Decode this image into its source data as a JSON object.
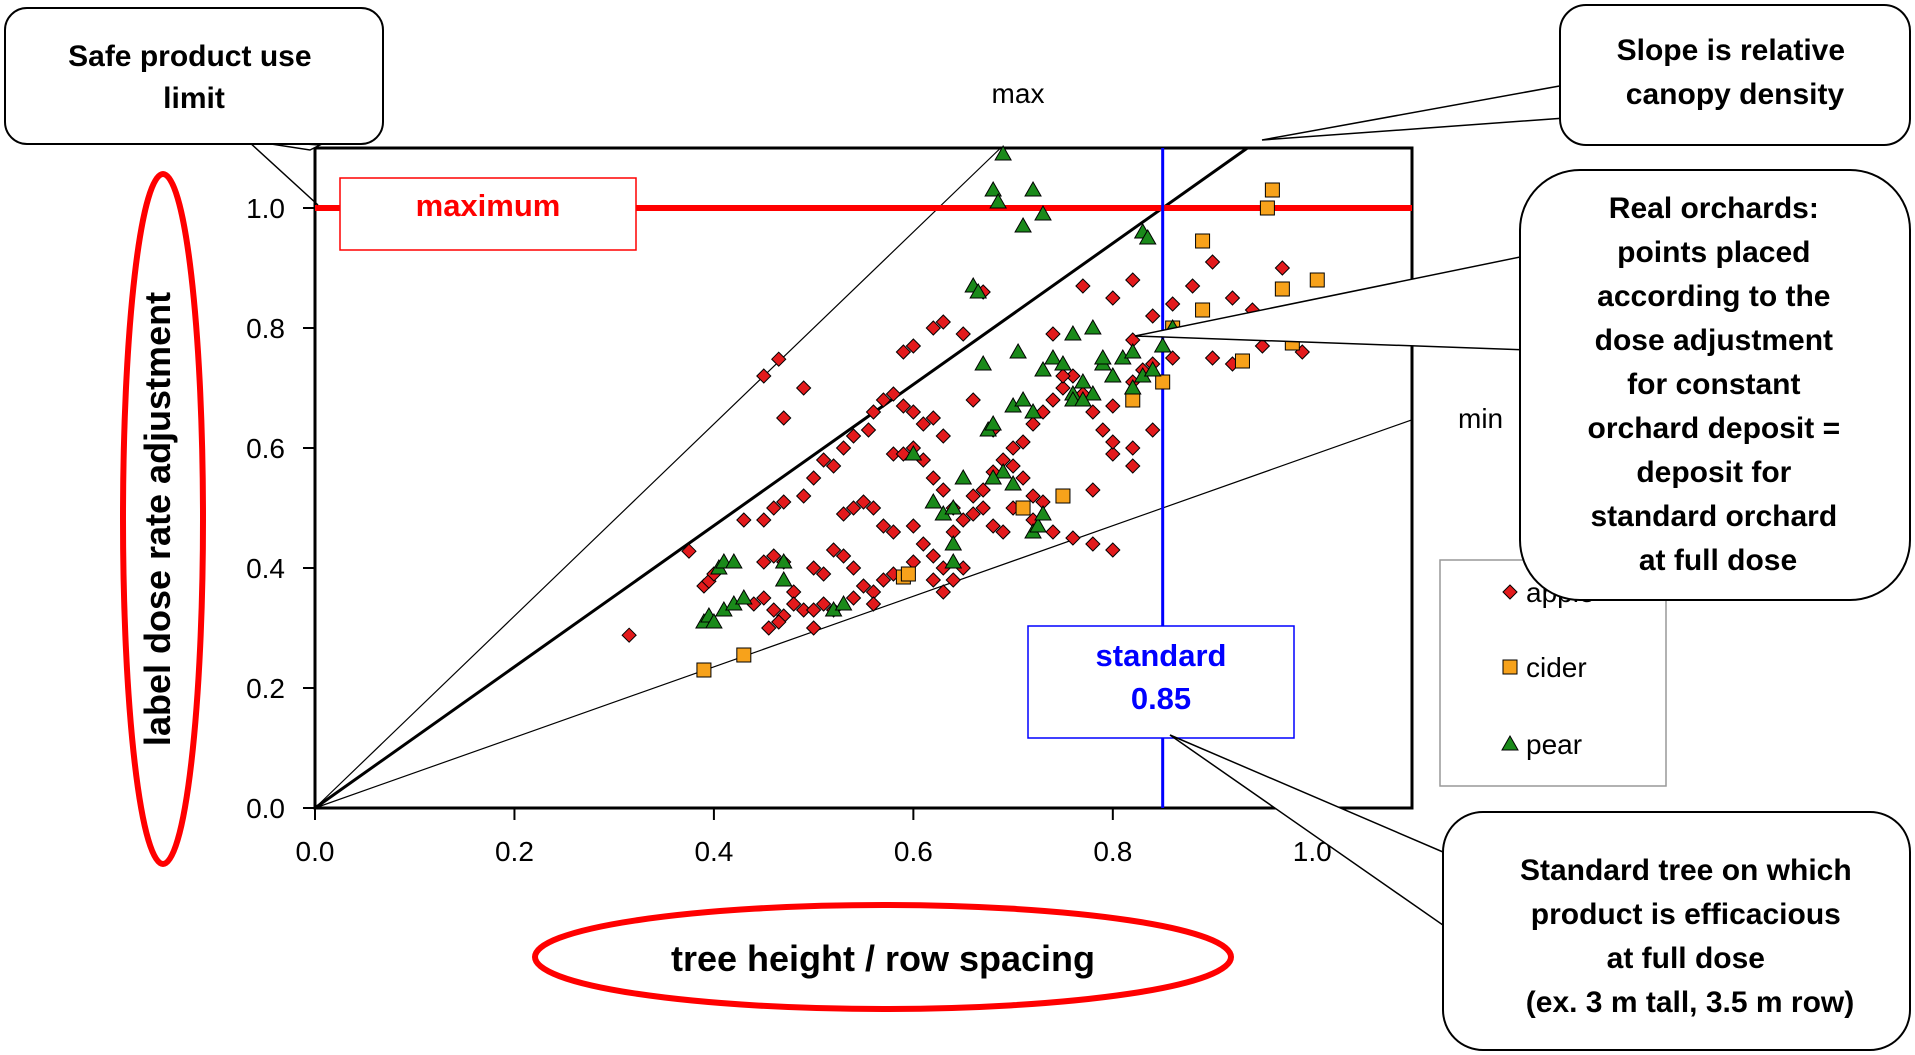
{
  "chart_data": {
    "type": "scatter",
    "xlabel": "tree height / row spacing",
    "ylabel": "label dose rate adjustment",
    "xlim": [
      0,
      1.1
    ],
    "ylim": [
      0,
      1.1
    ],
    "x_ticks": [
      "0.0",
      "0.2",
      "0.4",
      "0.6",
      "0.8",
      "1.0"
    ],
    "y_ticks": [
      "0.0",
      "0.2",
      "0.4",
      "0.6",
      "0.8",
      "1.0"
    ],
    "grid": false,
    "legend_position": "right",
    "reference_lines": {
      "max_label": "max",
      "min_label": "min",
      "maximum": {
        "value": 1.0,
        "label": "maximum",
        "color": "#ff0000"
      },
      "standard": {
        "value": 0.85,
        "label": "standard",
        "value_label": "0.85",
        "color": "#0000ff"
      },
      "slopes": {
        "max": 1.6,
        "standard": 1.1765,
        "min": 0.5882
      }
    },
    "series": [
      {
        "name": "apple",
        "marker": "diamond",
        "color": "#e31a1c",
        "points": [
          [
            0.315,
            0.288
          ],
          [
            0.375,
            0.428
          ],
          [
            0.39,
            0.37
          ],
          [
            0.395,
            0.378
          ],
          [
            0.4,
            0.39
          ],
          [
            0.43,
            0.48
          ],
          [
            0.45,
            0.72
          ],
          [
            0.465,
            0.748
          ],
          [
            0.47,
            0.65
          ],
          [
            0.49,
            0.7
          ],
          [
            0.44,
            0.34
          ],
          [
            0.45,
            0.35
          ],
          [
            0.46,
            0.33
          ],
          [
            0.47,
            0.32
          ],
          [
            0.48,
            0.36
          ],
          [
            0.49,
            0.33
          ],
          [
            0.5,
            0.33
          ],
          [
            0.51,
            0.34
          ],
          [
            0.45,
            0.41
          ],
          [
            0.46,
            0.42
          ],
          [
            0.47,
            0.41
          ],
          [
            0.455,
            0.3
          ],
          [
            0.465,
            0.31
          ],
          [
            0.48,
            0.34
          ],
          [
            0.45,
            0.48
          ],
          [
            0.46,
            0.5
          ],
          [
            0.47,
            0.51
          ],
          [
            0.49,
            0.52
          ],
          [
            0.5,
            0.55
          ],
          [
            0.51,
            0.58
          ],
          [
            0.52,
            0.57
          ],
          [
            0.53,
            0.6
          ],
          [
            0.54,
            0.62
          ],
          [
            0.555,
            0.63
          ],
          [
            0.5,
            0.4
          ],
          [
            0.51,
            0.39
          ],
          [
            0.52,
            0.43
          ],
          [
            0.53,
            0.42
          ],
          [
            0.54,
            0.4
          ],
          [
            0.55,
            0.37
          ],
          [
            0.56,
            0.36
          ],
          [
            0.57,
            0.38
          ],
          [
            0.53,
            0.49
          ],
          [
            0.54,
            0.5
          ],
          [
            0.55,
            0.51
          ],
          [
            0.56,
            0.5
          ],
          [
            0.57,
            0.47
          ],
          [
            0.58,
            0.46
          ],
          [
            0.5,
            0.3
          ],
          [
            0.52,
            0.33
          ],
          [
            0.54,
            0.35
          ],
          [
            0.56,
            0.34
          ],
          [
            0.58,
            0.39
          ],
          [
            0.6,
            0.41
          ],
          [
            0.56,
            0.66
          ],
          [
            0.57,
            0.68
          ],
          [
            0.58,
            0.69
          ],
          [
            0.59,
            0.67
          ],
          [
            0.6,
            0.66
          ],
          [
            0.61,
            0.64
          ],
          [
            0.62,
            0.65
          ],
          [
            0.63,
            0.62
          ],
          [
            0.59,
            0.76
          ],
          [
            0.6,
            0.77
          ],
          [
            0.62,
            0.8
          ],
          [
            0.63,
            0.81
          ],
          [
            0.65,
            0.79
          ],
          [
            0.67,
            0.86
          ],
          [
            0.58,
            0.59
          ],
          [
            0.59,
            0.59
          ],
          [
            0.6,
            0.6
          ],
          [
            0.61,
            0.58
          ],
          [
            0.62,
            0.55
          ],
          [
            0.63,
            0.53
          ],
          [
            0.64,
            0.5
          ],
          [
            0.6,
            0.47
          ],
          [
            0.61,
            0.44
          ],
          [
            0.62,
            0.42
          ],
          [
            0.63,
            0.4
          ],
          [
            0.64,
            0.38
          ],
          [
            0.65,
            0.4
          ],
          [
            0.62,
            0.38
          ],
          [
            0.63,
            0.36
          ],
          [
            0.64,
            0.46
          ],
          [
            0.65,
            0.48
          ],
          [
            0.66,
            0.49
          ],
          [
            0.67,
            0.5
          ],
          [
            0.68,
            0.47
          ],
          [
            0.69,
            0.46
          ],
          [
            0.66,
            0.52
          ],
          [
            0.67,
            0.53
          ],
          [
            0.68,
            0.56
          ],
          [
            0.69,
            0.58
          ],
          [
            0.7,
            0.57
          ],
          [
            0.71,
            0.55
          ],
          [
            0.72,
            0.52
          ],
          [
            0.73,
            0.51
          ],
          [
            0.7,
            0.6
          ],
          [
            0.71,
            0.61
          ],
          [
            0.72,
            0.64
          ],
          [
            0.73,
            0.66
          ],
          [
            0.74,
            0.68
          ],
          [
            0.75,
            0.7
          ],
          [
            0.76,
            0.72
          ],
          [
            0.77,
            0.69
          ],
          [
            0.66,
            0.68
          ],
          [
            0.68,
            0.63
          ],
          [
            0.7,
            0.5
          ],
          [
            0.72,
            0.48
          ],
          [
            0.74,
            0.46
          ],
          [
            0.76,
            0.45
          ],
          [
            0.78,
            0.44
          ],
          [
            0.8,
            0.43
          ],
          [
            0.78,
            0.53
          ],
          [
            0.8,
            0.59
          ],
          [
            0.82,
            0.6
          ],
          [
            0.84,
            0.63
          ],
          [
            0.82,
            0.57
          ],
          [
            0.8,
            0.67
          ],
          [
            0.82,
            0.71
          ],
          [
            0.83,
            0.73
          ],
          [
            0.84,
            0.74
          ],
          [
            0.86,
            0.75
          ],
          [
            0.82,
            0.78
          ],
          [
            0.84,
            0.82
          ],
          [
            0.86,
            0.84
          ],
          [
            0.88,
            0.87
          ],
          [
            0.9,
            0.91
          ],
          [
            0.92,
            0.85
          ],
          [
            0.94,
            0.83
          ],
          [
            0.9,
            0.75
          ],
          [
            0.92,
            0.74
          ],
          [
            0.95,
            0.77
          ],
          [
            0.96,
            0.8
          ],
          [
            0.97,
            0.9
          ],
          [
            0.98,
            0.78
          ],
          [
            0.99,
            0.76
          ],
          [
            0.77,
            0.87
          ],
          [
            0.8,
            0.85
          ],
          [
            0.82,
            0.88
          ],
          [
            0.74,
            0.79
          ],
          [
            0.75,
            0.72
          ],
          [
            0.78,
            0.66
          ],
          [
            0.79,
            0.63
          ],
          [
            0.8,
            0.61
          ]
        ]
      },
      {
        "name": "cider",
        "marker": "square",
        "color": "#f7a21b",
        "points": [
          [
            0.39,
            0.23
          ],
          [
            0.43,
            0.255
          ],
          [
            0.59,
            0.385
          ],
          [
            0.595,
            0.39
          ],
          [
            0.71,
            0.5
          ],
          [
            0.75,
            0.52
          ],
          [
            0.82,
            0.68
          ],
          [
            0.85,
            0.71
          ],
          [
            0.86,
            0.8
          ],
          [
            0.89,
            0.83
          ],
          [
            0.89,
            0.945
          ],
          [
            0.93,
            0.745
          ],
          [
            0.955,
            1.0
          ],
          [
            0.96,
            1.03
          ],
          [
            0.97,
            0.865
          ],
          [
            0.98,
            0.775
          ],
          [
            1.005,
            0.88
          ]
        ]
      },
      {
        "name": "pear",
        "marker": "triangle",
        "color": "#1a8a1a",
        "points": [
          [
            0.39,
            0.31
          ],
          [
            0.395,
            0.32
          ],
          [
            0.4,
            0.31
          ],
          [
            0.41,
            0.33
          ],
          [
            0.405,
            0.4
          ],
          [
            0.41,
            0.41
          ],
          [
            0.42,
            0.41
          ],
          [
            0.42,
            0.34
          ],
          [
            0.43,
            0.35
          ],
          [
            0.47,
            0.41
          ],
          [
            0.47,
            0.38
          ],
          [
            0.52,
            0.33
          ],
          [
            0.53,
            0.34
          ],
          [
            0.6,
            0.59
          ],
          [
            0.62,
            0.51
          ],
          [
            0.63,
            0.49
          ],
          [
            0.64,
            0.41
          ],
          [
            0.64,
            0.44
          ],
          [
            0.64,
            0.5
          ],
          [
            0.65,
            0.55
          ],
          [
            0.66,
            0.87
          ],
          [
            0.665,
            0.86
          ],
          [
            0.67,
            0.74
          ],
          [
            0.675,
            0.63
          ],
          [
            0.68,
            0.64
          ],
          [
            0.69,
            0.56
          ],
          [
            0.7,
            0.54
          ],
          [
            0.7,
            0.67
          ],
          [
            0.71,
            0.68
          ],
          [
            0.705,
            0.76
          ],
          [
            0.72,
            0.46
          ],
          [
            0.725,
            0.47
          ],
          [
            0.73,
            0.49
          ],
          [
            0.72,
            0.66
          ],
          [
            0.73,
            0.73
          ],
          [
            0.74,
            0.75
          ],
          [
            0.75,
            0.74
          ],
          [
            0.76,
            0.69
          ],
          [
            0.77,
            0.71
          ],
          [
            0.78,
            0.69
          ],
          [
            0.79,
            0.74
          ],
          [
            0.8,
            0.72
          ],
          [
            0.81,
            0.75
          ],
          [
            0.82,
            0.7
          ],
          [
            0.83,
            0.72
          ],
          [
            0.76,
            0.79
          ],
          [
            0.78,
            0.8
          ],
          [
            0.79,
            0.75
          ],
          [
            0.76,
            0.68
          ],
          [
            0.77,
            0.68
          ],
          [
            0.82,
            0.76
          ],
          [
            0.84,
            0.73
          ],
          [
            0.83,
            0.96
          ],
          [
            0.835,
            0.95
          ],
          [
            0.85,
            0.77
          ],
          [
            0.86,
            0.8
          ],
          [
            0.69,
            1.09
          ],
          [
            0.68,
            1.03
          ],
          [
            0.685,
            1.01
          ],
          [
            0.71,
            0.97
          ],
          [
            0.72,
            1.03
          ],
          [
            0.73,
            0.99
          ],
          [
            0.68,
            0.55
          ]
        ]
      }
    ]
  },
  "annotations": {
    "maximum_box": "maximum",
    "standard_box_line1": "standard",
    "standard_box_line2": "0.85",
    "callout_safe": [
      "Safe product use",
      "limit"
    ],
    "callout_slope": [
      "Slope is relative",
      "canopy density"
    ],
    "callout_real": [
      "Real orchards:",
      "points placed",
      "according to the",
      "dose adjustment",
      "for constant",
      "orchard deposit =",
      "deposit for",
      "standard orchard",
      "at full dose"
    ],
    "callout_standard": [
      "Standard tree on which",
      "product is efficacious",
      "at full dose",
      "(ex. 3 m tall, 3.5 m row)"
    ]
  }
}
